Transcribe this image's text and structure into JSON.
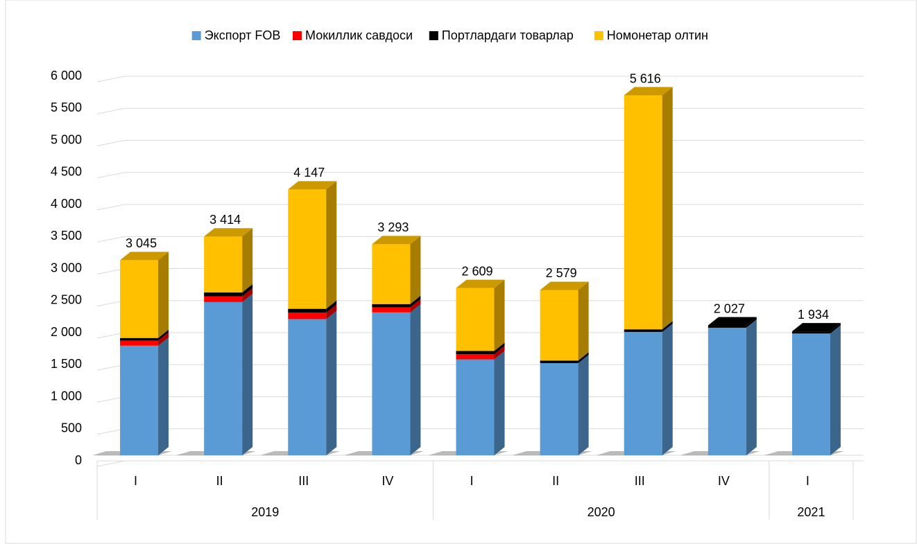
{
  "chart_data": {
    "type": "stacked-bar-3d",
    "categories": [
      "I",
      "II",
      "III",
      "IV",
      "I",
      "II",
      "III",
      "IV",
      "I"
    ],
    "groups": [
      {
        "name": "2019",
        "count": 4
      },
      {
        "name": "2020",
        "count": 4
      },
      {
        "name": "2021",
        "count": 1
      }
    ],
    "series": [
      {
        "name": "Экспорт FOB",
        "color": "#5b9bd5",
        "values": [
          1710,
          2390,
          2125,
          2229,
          1497,
          1438,
          1925,
          1990,
          1900
        ]
      },
      {
        "name": "Мокиллик савдоси",
        "color": "#ff0000",
        "values": [
          80,
          90,
          100,
          80,
          80,
          0,
          0,
          0,
          0
        ]
      },
      {
        "name": "Портлардаги товарлар",
        "color": "#000000",
        "values": [
          40,
          60,
          60,
          50,
          50,
          40,
          40,
          37,
          34
        ]
      },
      {
        "name": "Номонетар олтин",
        "color": "#ffc000",
        "values": [
          1215,
          874,
          1862,
          934,
          982,
          1101,
          3651,
          0,
          0
        ]
      }
    ],
    "totals": [
      3045,
      3414,
      4147,
      3293,
      2609,
      2579,
      5616,
      2027,
      1934
    ],
    "total_labels": [
      "3 045",
      "3 414",
      "4 147",
      "3 293",
      "2 609",
      "2 579",
      "5 616",
      "2 027",
      "1 934"
    ],
    "ylim": [
      0,
      6000
    ],
    "yticks": [
      0,
      500,
      {
        "value": 1000,
        "label": "1 000"
      },
      {
        "value": 1500,
        "label": "1 500"
      },
      {
        "value": 2000,
        "label": "2 000"
      },
      {
        "value": 2500,
        "label": "2 500"
      },
      {
        "value": 3000,
        "label": "3 000"
      },
      {
        "value": 3500,
        "label": "3 500"
      },
      {
        "value": 4000,
        "label": "4 000"
      },
      {
        "value": 4500,
        "label": "4 500"
      },
      {
        "value": 5000,
        "label": "5 000"
      },
      {
        "value": 5500,
        "label": "5 500"
      },
      {
        "value": 6000,
        "label": "6 000"
      }
    ],
    "grid": true,
    "legend": "top"
  }
}
